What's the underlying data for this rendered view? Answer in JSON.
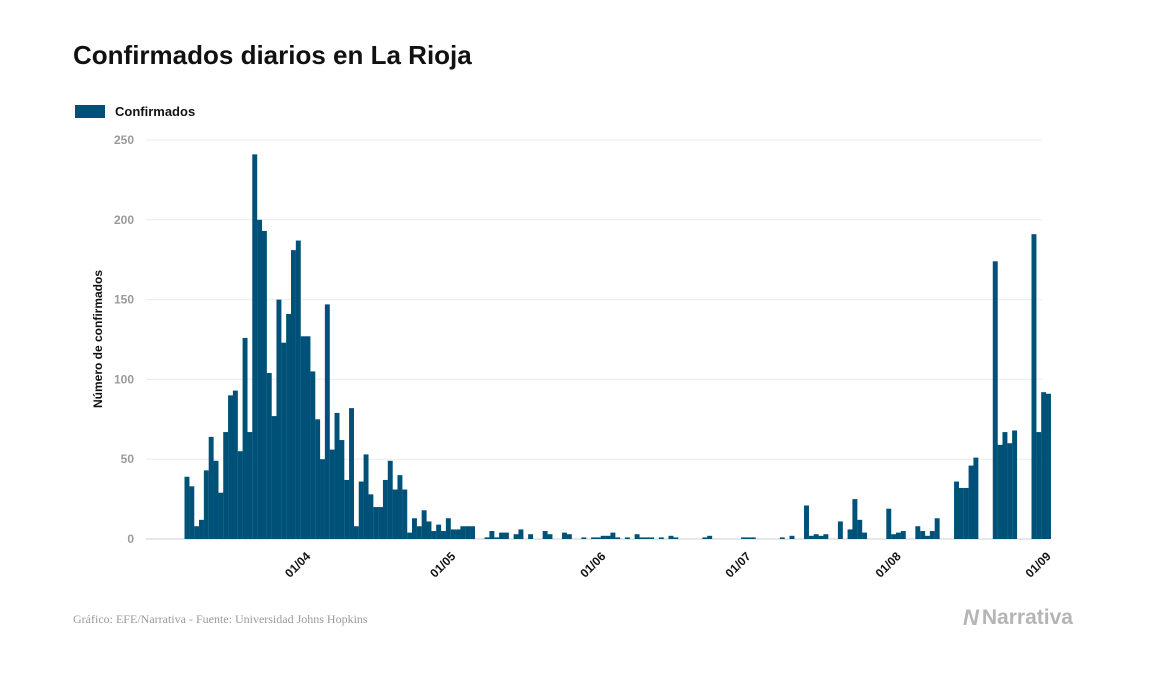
{
  "title": "Confirmados diarios en La Rioja",
  "legend": {
    "label": "Confirmados",
    "color": "#005178"
  },
  "footer": "Gráfico: EFE/Narrativa - Fuente: Universidad Johns Hopkins",
  "brand": {
    "mark": "N",
    "name": "Narrativa"
  },
  "chart_data": {
    "type": "bar",
    "title": "Confirmados diarios en La Rioja",
    "ylabel": "Número de confirmados",
    "xlabel": "",
    "ylim": [
      0,
      250
    ],
    "yticks": [
      0,
      50,
      100,
      150,
      200,
      250
    ],
    "xticks": [
      "01/04",
      "01/05",
      "01/06",
      "01/07",
      "01/08",
      "01/09"
    ],
    "grid": true,
    "legend_position": "top-left",
    "start_date": "2020-03-08",
    "series": [
      {
        "name": "Confirmados",
        "color": "#005178",
        "values": [
          39,
          33,
          8,
          12,
          43,
          64,
          49,
          29,
          67,
          90,
          93,
          55,
          126,
          67,
          241,
          200,
          193,
          104,
          77,
          150,
          123,
          141,
          181,
          187,
          127,
          127,
          105,
          75,
          50,
          147,
          56,
          79,
          62,
          37,
          82,
          8,
          36,
          53,
          28,
          20,
          20,
          37,
          49,
          31,
          40,
          31,
          4,
          13,
          8,
          18,
          11,
          5,
          9,
          5,
          13,
          6,
          6,
          8,
          8,
          8,
          0,
          0,
          1,
          5,
          1,
          4,
          4,
          0,
          3,
          6,
          0,
          3,
          0,
          0,
          5,
          3,
          0,
          0,
          4,
          3,
          0,
          0,
          1,
          0,
          1,
          1,
          2,
          2,
          4,
          1,
          0,
          1,
          0,
          3,
          1,
          1,
          1,
          0,
          1,
          0,
          2,
          1,
          0,
          0,
          0,
          0,
          0,
          1,
          2,
          0,
          0,
          0,
          0,
          0,
          0,
          1,
          1,
          1,
          0,
          0,
          0,
          0,
          0,
          1,
          0,
          2,
          0,
          0,
          21,
          2,
          3,
          2,
          3,
          0,
          0,
          11,
          0,
          6,
          25,
          12,
          4,
          0,
          0,
          0,
          0,
          19,
          3,
          4,
          5,
          0,
          0,
          8,
          5,
          2,
          5,
          13,
          0,
          0,
          0,
          36,
          32,
          32,
          46,
          51,
          0,
          0,
          0,
          174,
          59,
          67,
          60,
          68,
          0,
          0,
          0,
          191,
          67,
          92,
          91
        ]
      }
    ]
  }
}
